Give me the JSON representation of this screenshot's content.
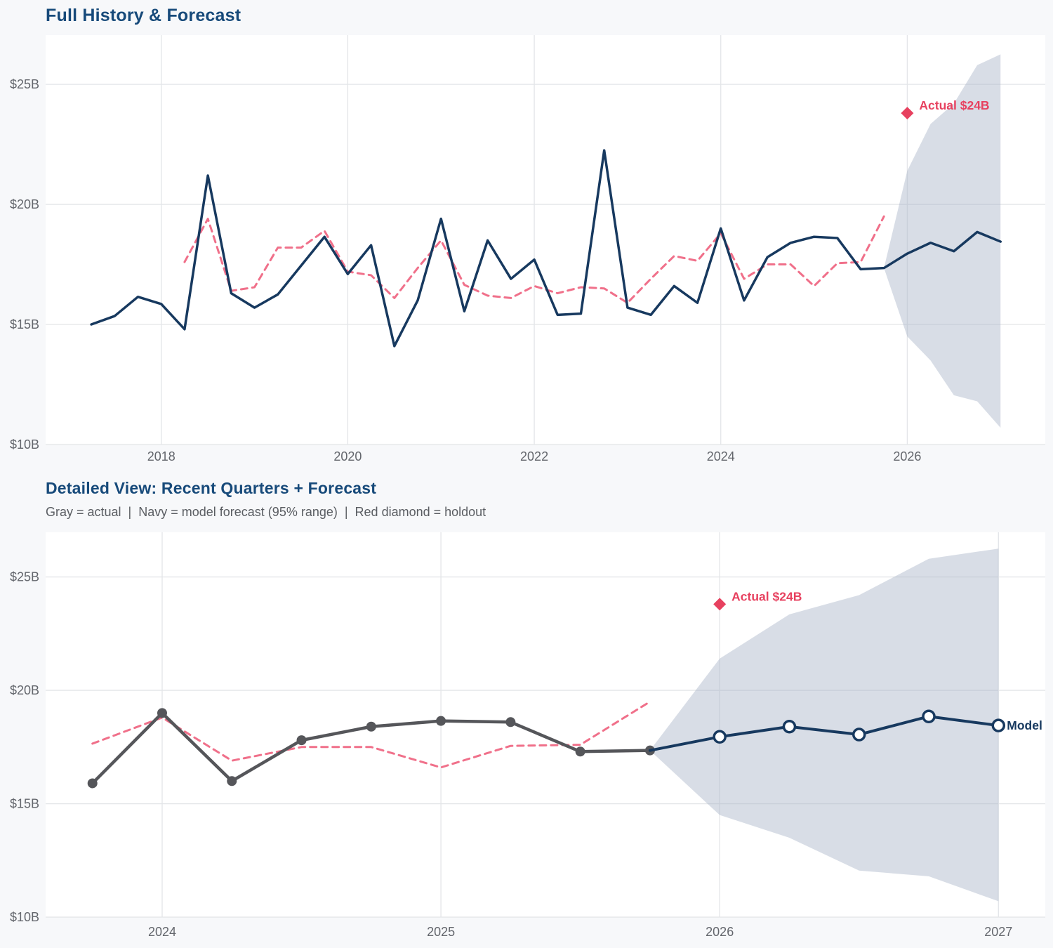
{
  "colors": {
    "navy": "#17395f",
    "pink": "#f0708a",
    "gray": "#55565a",
    "red": "#e7415f",
    "band": "rgba(168,180,199,0.45)",
    "title": "#174a7a",
    "subtitle": "#5a5d62",
    "tick": "#63666c",
    "grid": "#e3e5e8",
    "plot_bg": "#ffffff",
    "page_bg": "#f7f8fa"
  },
  "chart_data": [
    {
      "type": "line",
      "title": "Full History & Forecast",
      "xlim": [
        2016.76,
        2027.48
      ],
      "ylim": [
        10,
        27.05
      ],
      "x_ticks": [
        {
          "v": 2018,
          "label": "2018"
        },
        {
          "v": 2020,
          "label": "2020"
        },
        {
          "v": 2022,
          "label": "2022"
        },
        {
          "v": 2024,
          "label": "2024"
        },
        {
          "v": 2026,
          "label": "2026"
        }
      ],
      "y_ticks": [
        {
          "v": 25,
          "label": "$25B"
        },
        {
          "v": 20,
          "label": "$20B"
        },
        {
          "v": 15,
          "label": "$15B"
        },
        {
          "v": 10,
          "label": "$10B"
        }
      ],
      "band": {
        "name": "forecast-95-range",
        "x": [
          2025.75,
          2026.0,
          2026.25,
          2026.5,
          2026.75,
          2027.0
        ],
        "upper": [
          17.35,
          21.4,
          23.35,
          24.2,
          25.8,
          26.25
        ],
        "lower": [
          17.35,
          14.5,
          13.5,
          12.05,
          11.8,
          10.7
        ]
      },
      "series": [
        {
          "name": "seasonal-baseline",
          "color_key": "pink",
          "dash": true,
          "width": 3,
          "x": [
            2018.25,
            2018.5,
            2018.75,
            2019.0,
            2019.25,
            2019.5,
            2019.75,
            2020.0,
            2020.25,
            2020.5,
            2020.75,
            2021.0,
            2021.25,
            2021.5,
            2021.75,
            2022.0,
            2022.25,
            2022.5,
            2022.75,
            2023.0,
            2023.25,
            2023.5,
            2023.75,
            2024.0,
            2024.25,
            2024.5,
            2024.75,
            2025.0,
            2025.25,
            2025.5,
            2025.75
          ],
          "values": [
            17.6,
            19.4,
            16.4,
            16.55,
            18.2,
            18.2,
            18.9,
            17.2,
            17.05,
            16.1,
            17.35,
            18.5,
            16.65,
            16.2,
            16.1,
            16.6,
            16.3,
            16.55,
            16.5,
            15.9,
            16.9,
            17.85,
            17.65,
            18.8,
            16.9,
            17.5,
            17.5,
            16.6,
            17.55,
            17.6,
            19.5
          ]
        },
        {
          "name": "history-and-forecast",
          "color_key": "navy",
          "dash": false,
          "width": 3.5,
          "x": [
            2017.25,
            2017.5,
            2017.75,
            2018.0,
            2018.25,
            2018.5,
            2018.75,
            2019.0,
            2019.25,
            2019.5,
            2019.75,
            2020.0,
            2020.25,
            2020.5,
            2020.75,
            2021.0,
            2021.25,
            2021.5,
            2021.75,
            2022.0,
            2022.25,
            2022.5,
            2022.75,
            2023.0,
            2023.25,
            2023.5,
            2023.75,
            2024.0,
            2024.25,
            2024.5,
            2024.75,
            2025.0,
            2025.25,
            2025.5,
            2025.75,
            2026.0,
            2026.25,
            2026.5,
            2026.75,
            2027.0
          ],
          "values": [
            15.0,
            15.35,
            16.15,
            15.85,
            14.8,
            21.2,
            16.3,
            15.7,
            16.25,
            17.45,
            18.65,
            17.1,
            18.3,
            14.1,
            16.0,
            19.4,
            15.55,
            18.5,
            16.9,
            17.7,
            15.4,
            15.45,
            22.25,
            15.7,
            15.4,
            16.6,
            15.9,
            19.0,
            16.0,
            17.8,
            18.4,
            18.65,
            18.6,
            17.3,
            17.35,
            17.95,
            18.4,
            18.05,
            18.85,
            18.45
          ]
        }
      ],
      "annotations": [
        {
          "type": "diamond-label",
          "label": "Actual $24B",
          "x": 2026.0,
          "y": 23.8
        }
      ]
    },
    {
      "type": "line",
      "title": "Detailed View: Recent Quarters + Forecast",
      "subtitle": "Gray = actual  |  Navy = model forecast (95% range)  |  Red diamond = holdout",
      "xlim": [
        2023.582,
        2027.168
      ],
      "ylim": [
        10,
        26.97
      ],
      "x_ticks": [
        {
          "v": 2024,
          "label": "2024"
        },
        {
          "v": 2025,
          "label": "2025"
        },
        {
          "v": 2026,
          "label": "2026"
        },
        {
          "v": 2027,
          "label": "2027"
        }
      ],
      "y_ticks": [
        {
          "v": 25,
          "label": "$25B"
        },
        {
          "v": 20,
          "label": "$20B"
        },
        {
          "v": 15,
          "label": "$15B"
        },
        {
          "v": 10,
          "label": "$10B"
        }
      ],
      "band": {
        "name": "forecast-95-range",
        "x": [
          2025.75,
          2026.0,
          2026.25,
          2026.5,
          2026.75,
          2027.0
        ],
        "upper": [
          17.35,
          21.4,
          23.35,
          24.2,
          25.8,
          26.25
        ],
        "lower": [
          17.35,
          14.5,
          13.5,
          12.05,
          11.8,
          10.7
        ]
      },
      "series": [
        {
          "name": "seasonal-baseline",
          "color_key": "pink",
          "dash": true,
          "width": 3,
          "x": [
            2023.75,
            2024.0,
            2024.25,
            2024.5,
            2024.75,
            2025.0,
            2025.25,
            2025.5,
            2025.75
          ],
          "values": [
            17.65,
            18.8,
            16.9,
            17.5,
            17.5,
            16.6,
            17.55,
            17.6,
            19.5
          ]
        },
        {
          "name": "actual",
          "color_key": "gray",
          "dash": false,
          "width": 4.5,
          "marker": "dot",
          "marker_r": 7,
          "x": [
            2023.75,
            2024.0,
            2024.25,
            2024.5,
            2024.75,
            2025.0,
            2025.25,
            2025.5,
            2025.75
          ],
          "values": [
            15.9,
            19.0,
            16.0,
            17.8,
            18.4,
            18.65,
            18.6,
            17.3,
            17.35
          ]
        },
        {
          "name": "model-forecast",
          "color_key": "navy",
          "dash": false,
          "width": 4,
          "marker": "open-circle",
          "marker_r": 8,
          "marker_skip_first": true,
          "end_label": "Model",
          "x": [
            2025.75,
            2026.0,
            2026.25,
            2026.5,
            2026.75,
            2027.0
          ],
          "values": [
            17.35,
            17.95,
            18.4,
            18.05,
            18.85,
            18.45
          ]
        }
      ],
      "annotations": [
        {
          "type": "diamond-label",
          "label": "Actual $24B",
          "x": 2026.0,
          "y": 23.8
        }
      ]
    }
  ]
}
